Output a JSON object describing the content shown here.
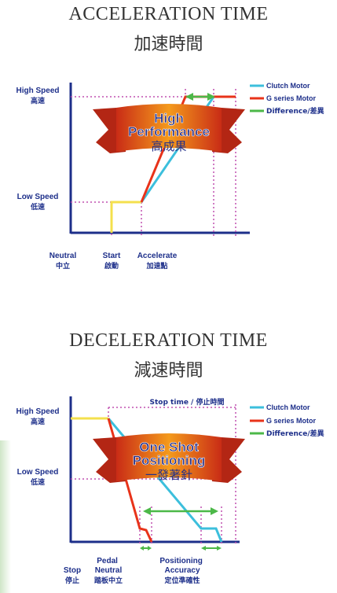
{
  "charts": [
    {
      "title_en": "ACCELERATION TIME",
      "title_zh": "加速時間",
      "banner": {
        "line1": "High",
        "line2": "Performance",
        "line3": "高成果"
      },
      "y_labels": [
        {
          "en": "High Speed",
          "zh": "高速"
        },
        {
          "en": "Low Speed",
          "zh": "低速"
        }
      ],
      "x_labels": [
        {
          "en": "Neutral",
          "zh": "中立"
        },
        {
          "en": "Start",
          "zh": "啟動"
        },
        {
          "en": "Accelerate",
          "zh": "加速點"
        }
      ],
      "legend": [
        {
          "label": "Clutch Motor",
          "color": "#3cbfdc"
        },
        {
          "label": "G series Motor",
          "color": "#e8331a"
        },
        {
          "label": "Difference/差異",
          "color": "#4cb848"
        }
      ]
    },
    {
      "title_en": "DECELERATION TIME",
      "title_zh": "減速時間",
      "banner": {
        "line1": "One Shot",
        "line2": "Positioning",
        "line3": "一發著針"
      },
      "stop_time_label": "Stop time / 停止時間",
      "y_labels": [
        {
          "en": "High Speed",
          "zh": "高速"
        },
        {
          "en": "Low Speed",
          "zh": "低速"
        }
      ],
      "x_labels": [
        {
          "en": "Stop",
          "zh": "停止"
        },
        {
          "en": "Pedal Neutral",
          "zh": "踏板中立"
        },
        {
          "en": "Positioning Accuracy",
          "zh": "定位準確性"
        }
      ],
      "legend": [
        {
          "label": "Clutch Motor",
          "color": "#3cbfdc"
        },
        {
          "label": "G series Motor",
          "color": "#e8331a"
        },
        {
          "label": "Difference/差異",
          "color": "#4cb848"
        }
      ]
    }
  ],
  "chart_data": [
    {
      "type": "line",
      "title": "ACCELERATION TIME 加速時間",
      "xlabel": "",
      "ylabel": "",
      "y_ticks": [
        "Low Speed",
        "High Speed"
      ],
      "x_ticks": [
        "Neutral",
        "Start",
        "Accelerate"
      ],
      "series": [
        {
          "name": "Clutch Motor",
          "points": [
            [
              0,
              0
            ],
            [
              1,
              1
            ],
            [
              1.8,
              1
            ],
            [
              3.4,
              2
            ]
          ]
        },
        {
          "name": "G series Motor",
          "points": [
            [
              0,
              0
            ],
            [
              1,
              1
            ],
            [
              1.8,
              1
            ],
            [
              2.7,
              2
            ],
            [
              3.8,
              2
            ]
          ]
        },
        {
          "name": "Difference/差異",
          "points": [
            [
              2.7,
              2.05
            ],
            [
              3.4,
              2.05
            ]
          ]
        }
      ],
      "grid": false,
      "legend": "top-right"
    },
    {
      "type": "line",
      "title": "DECELERATION TIME 減速時間",
      "xlabel": "",
      "ylabel": "",
      "y_ticks": [
        "Low Speed",
        "High Speed"
      ],
      "x_ticks": [
        "Stop",
        "Pedal Neutral",
        "Positioning Accuracy"
      ],
      "series": [
        {
          "name": "Clutch Motor",
          "points": [
            [
              1,
              2
            ],
            [
              2.8,
              0.2
            ],
            [
              3.9,
              0.2
            ],
            [
              4.2,
              0
            ]
          ]
        },
        {
          "name": "G series Motor",
          "points": [
            [
              0,
              2
            ],
            [
              1,
              2
            ],
            [
              2.1,
              0.1
            ],
            [
              2.5,
              0
            ]
          ]
        },
        {
          "name": "Difference/差異",
          "points": [
            [
              2.2,
              0.55
            ],
            [
              3.8,
              0.55
            ]
          ]
        }
      ],
      "grid": false,
      "legend": "top-right"
    }
  ]
}
